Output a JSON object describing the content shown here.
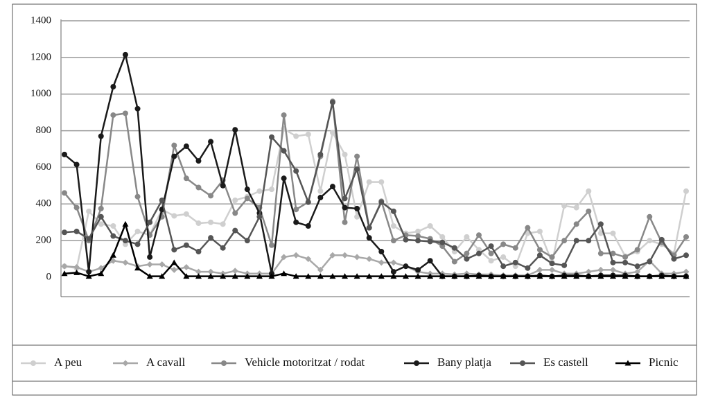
{
  "chart_data": {
    "type": "line",
    "categories": [
      null,
      null,
      null,
      null,
      null,
      null,
      null,
      null,
      null,
      null,
      null,
      null,
      null,
      null,
      null,
      null,
      null,
      null,
      null,
      null,
      null,
      null,
      null,
      null,
      null,
      null,
      null,
      null,
      null,
      null,
      null,
      null,
      null,
      null,
      null,
      null,
      null,
      null,
      null,
      null,
      null,
      null,
      null,
      null,
      null,
      null,
      null,
      null,
      null,
      null,
      null,
      null
    ],
    "ylim": [
      0,
      1400
    ],
    "yticks": [
      0,
      200,
      400,
      600,
      800,
      1000,
      1200,
      1400
    ],
    "grid": true,
    "legend": "bottom",
    "series": [
      {
        "name": "A peu",
        "color": "#cfcfcf",
        "marker": "circle",
        "values": [
          60,
          50,
          360,
          290,
          280,
          180,
          250,
          230,
          370,
          335,
          345,
          295,
          300,
          290,
          420,
          440,
          470,
          480,
          810,
          770,
          780,
          470,
          790,
          670,
          330,
          520,
          520,
          280,
          240,
          250,
          280,
          220,
          140,
          220,
          150,
          90,
          110,
          60,
          240,
          250,
          80,
          390,
          380,
          470,
          240,
          240,
          115,
          140,
          200,
          180,
          130,
          470
        ]
      },
      {
        "name": "A cavall",
        "color": "#a8a8a8",
        "marker": "diamond",
        "values": [
          60,
          55,
          30,
          50,
          90,
          80,
          60,
          70,
          70,
          40,
          55,
          30,
          30,
          20,
          35,
          20,
          20,
          20,
          110,
          120,
          100,
          40,
          120,
          120,
          110,
          100,
          80,
          80,
          60,
          30,
          20,
          20,
          15,
          20,
          15,
          15,
          10,
          10,
          10,
          40,
          40,
          20,
          20,
          30,
          40,
          40,
          20,
          30,
          90,
          20,
          20,
          30
        ]
      },
      {
        "name": "Vehicle motoritzat / rodat",
        "color": "#888888",
        "marker": "circle",
        "values": [
          460,
          380,
          200,
          375,
          885,
          895,
          440,
          230,
          330,
          720,
          540,
          490,
          445,
          530,
          350,
          430,
          380,
          175,
          885,
          370,
          410,
          660,
          960,
          300,
          660,
          270,
          415,
          200,
          230,
          225,
          210,
          170,
          85,
          130,
          230,
          130,
          180,
          160,
          270,
          150,
          110,
          200,
          290,
          360,
          130,
          130,
          110,
          150,
          330,
          190,
          120,
          220
        ]
      },
      {
        "name": "Bany platja",
        "color": "#1a1a1a",
        "marker": "circle",
        "values": [
          670,
          615,
          30,
          770,
          1040,
          1215,
          920,
          110,
          370,
          660,
          715,
          635,
          740,
          500,
          805,
          480,
          350,
          20,
          540,
          300,
          280,
          435,
          495,
          380,
          375,
          215,
          140,
          30,
          60,
          40,
          90,
          5,
          5,
          5,
          10,
          5,
          5,
          5,
          5,
          10,
          5,
          10,
          10,
          5,
          10,
          10,
          10,
          5,
          5,
          10,
          5,
          5
        ]
      },
      {
        "name": "Es castell",
        "color": "#555555",
        "marker": "circle",
        "values": [
          245,
          250,
          210,
          330,
          225,
          200,
          180,
          300,
          420,
          150,
          175,
          140,
          215,
          160,
          255,
          200,
          330,
          765,
          690,
          580,
          410,
          670,
          955,
          430,
          590,
          270,
          410,
          360,
          205,
          200,
          195,
          190,
          160,
          100,
          130,
          170,
          60,
          80,
          50,
          120,
          75,
          65,
          200,
          200,
          290,
          80,
          80,
          60,
          85,
          205,
          100,
          120
        ]
      },
      {
        "name": "Picnic",
        "color": "#000000",
        "marker": "triangle",
        "values": [
          20,
          25,
          5,
          20,
          120,
          290,
          50,
          5,
          5,
          80,
          5,
          5,
          5,
          5,
          5,
          5,
          5,
          5,
          20,
          5,
          5,
          5,
          5,
          5,
          5,
          5,
          5,
          5,
          5,
          5,
          5,
          5,
          5,
          5,
          5,
          5,
          5,
          5,
          5,
          5,
          5,
          5,
          5,
          5,
          5,
          5,
          5,
          5,
          5,
          5,
          5,
          5
        ]
      }
    ]
  }
}
